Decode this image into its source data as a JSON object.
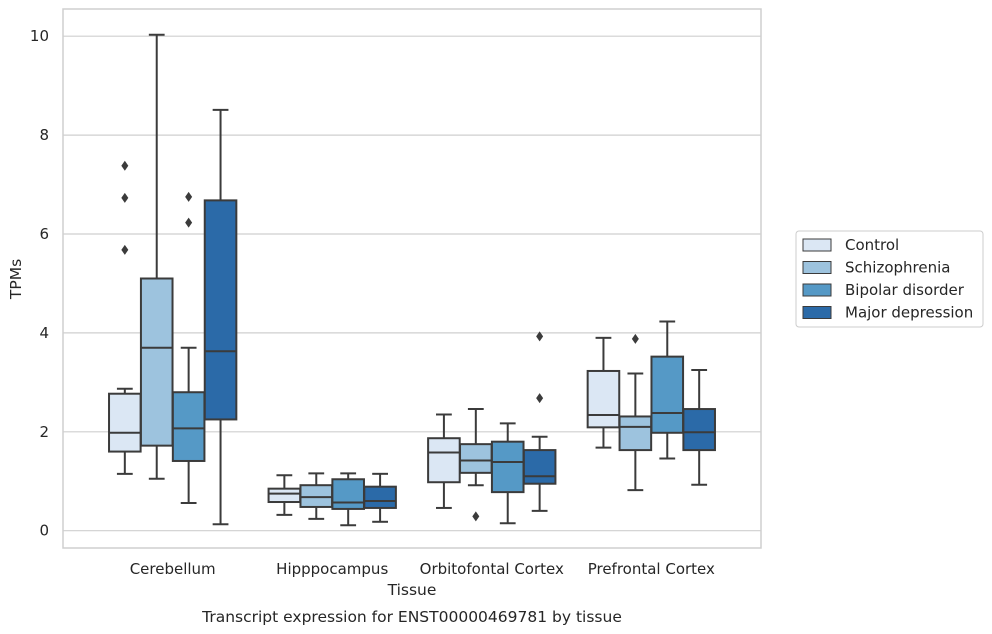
{
  "chart_data": {
    "type": "box",
    "title": "Transcript expression for ENST00000469781 by tissue",
    "xlabel": "Tissue",
    "ylabel": "TPMs",
    "ylim": [
      -0.35,
      10.55
    ],
    "yticks": [
      0,
      2,
      4,
      6,
      8,
      10
    ],
    "grid": true,
    "legend_position": "right",
    "categories": [
      "Cerebellum",
      "Hipppocampus",
      "Orbitofontal Cortex",
      "Prefrontal Cortex"
    ],
    "series": [
      {
        "name": "Control",
        "color": "#dbe7f4",
        "boxes": [
          {
            "whislo": 1.15,
            "q1": 1.6,
            "med": 1.98,
            "q3": 2.77,
            "whishi": 2.87,
            "fliers": [
              5.68,
              6.73,
              7.38
            ]
          },
          {
            "whislo": 0.32,
            "q1": 0.58,
            "med": 0.75,
            "q3": 0.85,
            "whishi": 1.12,
            "fliers": []
          },
          {
            "whislo": 0.46,
            "q1": 0.98,
            "med": 1.58,
            "q3": 1.87,
            "whishi": 2.35,
            "fliers": []
          },
          {
            "whislo": 1.68,
            "q1": 2.09,
            "med": 2.34,
            "q3": 3.23,
            "whishi": 3.9,
            "fliers": []
          }
        ]
      },
      {
        "name": "Schizophrenia",
        "color": "#9dc3de",
        "boxes": [
          {
            "whislo": 1.05,
            "q1": 1.72,
            "med": 3.7,
            "q3": 5.1,
            "whishi": 10.03,
            "fliers": []
          },
          {
            "whislo": 0.24,
            "q1": 0.48,
            "med": 0.68,
            "q3": 0.92,
            "whishi": 1.16,
            "fliers": []
          },
          {
            "whislo": 0.92,
            "q1": 1.17,
            "med": 1.42,
            "q3": 1.75,
            "whishi": 2.46,
            "fliers": [
              0.29
            ]
          },
          {
            "whislo": 0.82,
            "q1": 1.63,
            "med": 2.1,
            "q3": 2.31,
            "whishi": 3.18,
            "fliers": [
              3.88
            ]
          }
        ]
      },
      {
        "name": "Bipolar disorder",
        "color": "#5599c6",
        "boxes": [
          {
            "whislo": 0.56,
            "q1": 1.41,
            "med": 2.07,
            "q3": 2.8,
            "whishi": 3.7,
            "fliers": [
              6.23,
              6.75
            ]
          },
          {
            "whislo": 0.11,
            "q1": 0.44,
            "med": 0.57,
            "q3": 1.04,
            "whishi": 1.16,
            "fliers": []
          },
          {
            "whislo": 0.15,
            "q1": 0.78,
            "med": 1.39,
            "q3": 1.8,
            "whishi": 2.17,
            "fliers": []
          },
          {
            "whislo": 1.46,
            "q1": 1.98,
            "med": 2.38,
            "q3": 3.52,
            "whishi": 4.23,
            "fliers": []
          }
        ]
      },
      {
        "name": "Major depression",
        "color": "#2b6aa8",
        "boxes": [
          {
            "whislo": 0.13,
            "q1": 2.25,
            "med": 3.63,
            "q3": 6.68,
            "whishi": 8.51,
            "fliers": []
          },
          {
            "whislo": 0.18,
            "q1": 0.46,
            "med": 0.6,
            "q3": 0.89,
            "whishi": 1.15,
            "fliers": []
          },
          {
            "whislo": 0.4,
            "q1": 0.95,
            "med": 1.1,
            "q3": 1.63,
            "whishi": 1.9,
            "fliers": [
              2.68,
              3.93
            ]
          },
          {
            "whislo": 0.93,
            "q1": 1.63,
            "med": 1.99,
            "q3": 2.46,
            "whishi": 3.25,
            "fliers": []
          }
        ]
      }
    ],
    "colors": {
      "box_edge": "#3b3b3b",
      "grid": "#cfcfcf",
      "frame": "#cfcfcf"
    }
  }
}
